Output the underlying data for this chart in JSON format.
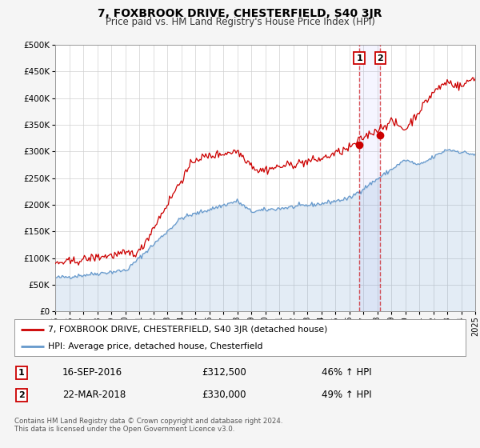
{
  "title": "7, FOXBROOK DRIVE, CHESTERFIELD, S40 3JR",
  "subtitle": "Price paid vs. HM Land Registry's House Price Index (HPI)",
  "legend_line1": "7, FOXBROOK DRIVE, CHESTERFIELD, S40 3JR (detached house)",
  "legend_line2": "HPI: Average price, detached house, Chesterfield",
  "sale1_label": "1",
  "sale1_date": "16-SEP-2016",
  "sale1_price": "£312,500",
  "sale1_hpi": "46% ↑ HPI",
  "sale1_year": 2016.72,
  "sale1_value": 312500,
  "sale2_label": "2",
  "sale2_date": "22-MAR-2018",
  "sale2_price": "£330,000",
  "sale2_hpi": "49% ↑ HPI",
  "sale2_year": 2018.22,
  "sale2_value": 330000,
  "footer_line1": "Contains HM Land Registry data © Crown copyright and database right 2024.",
  "footer_line2": "This data is licensed under the Open Government Licence v3.0.",
  "red_color": "#cc0000",
  "blue_color": "#6699cc",
  "background_color": "#f5f5f5",
  "plot_bg_color": "#ffffff",
  "ylim_min": 0,
  "ylim_max": 500000,
  "xlim_min": 1995,
  "xlim_max": 2025
}
